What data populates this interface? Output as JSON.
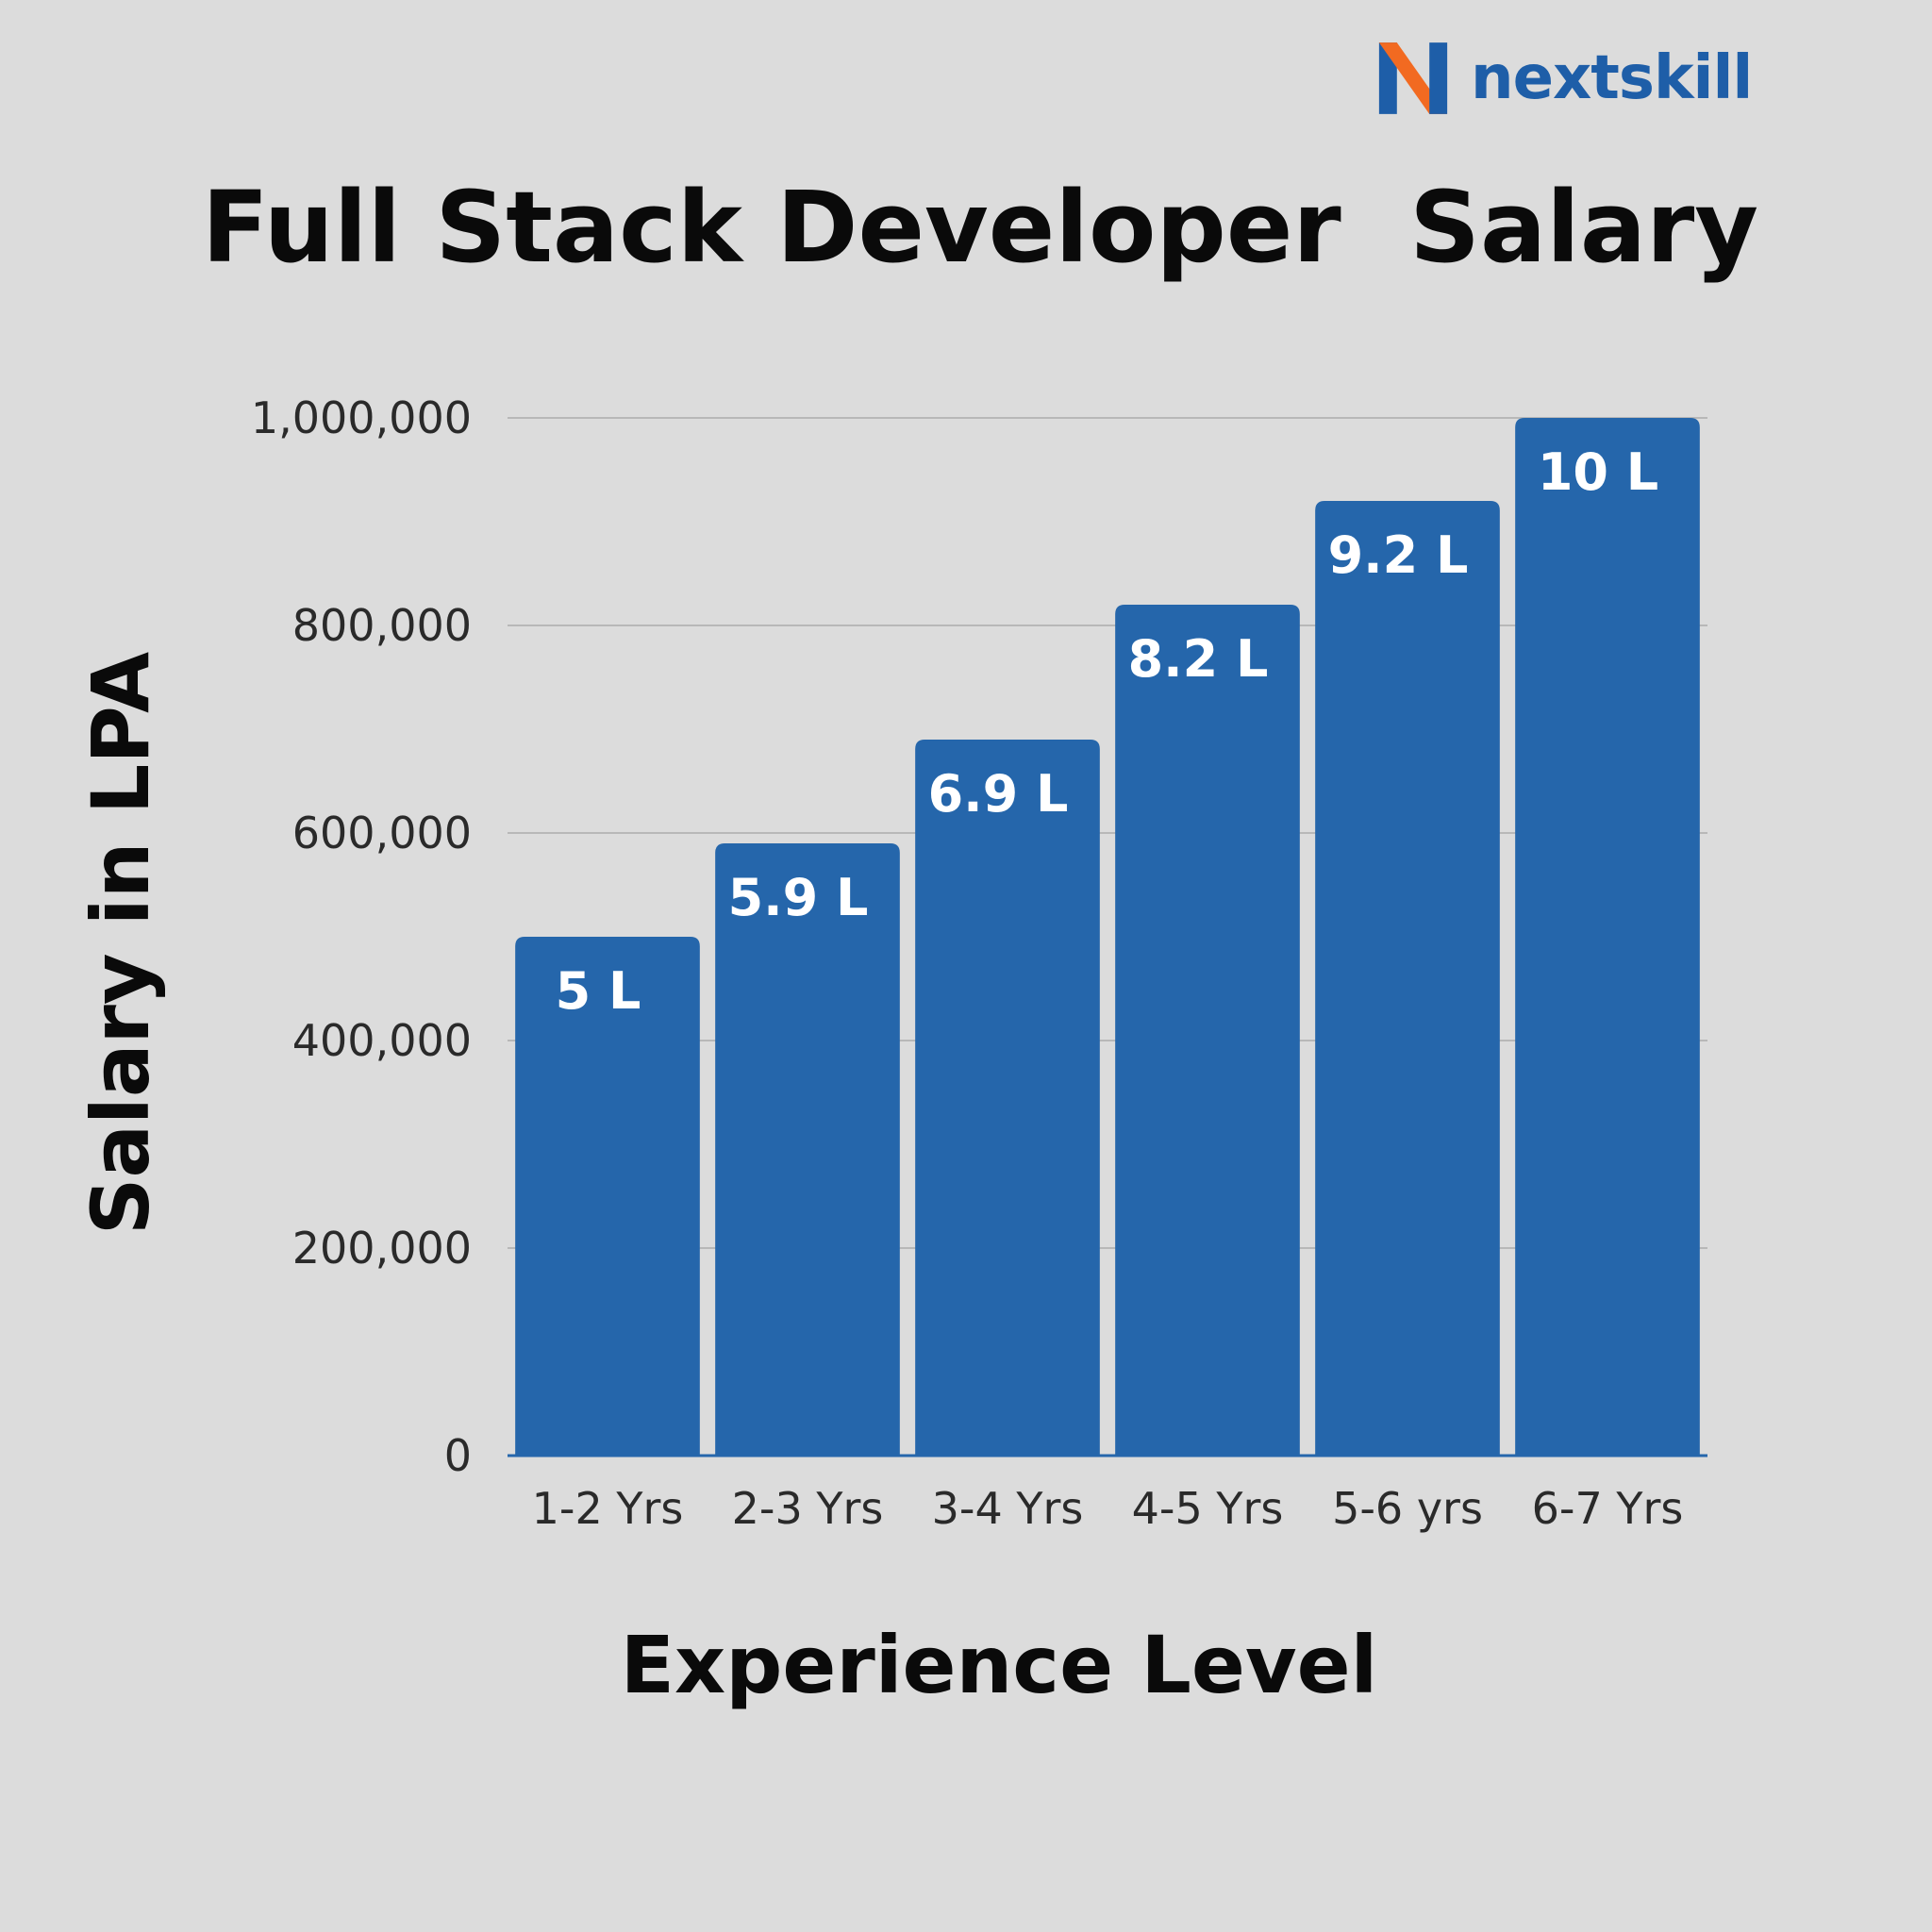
{
  "brand": {
    "name": "nextskill",
    "icon": "n-logo-icon",
    "colors": {
      "text": "#1e5ea8",
      "mark_primary": "#1e5ea8",
      "mark_accent": "#f26a21"
    }
  },
  "chart_data": {
    "type": "bar",
    "title": "Full Stack Developer  Salary",
    "xlabel": "Experience Level",
    "ylabel": "Salary in LPA",
    "categories": [
      "1-2 Yrs",
      "2-3 Yrs",
      "3-4 Yrs",
      "4-5 Yrs",
      "5-6 yrs",
      "6-7 Yrs"
    ],
    "values": [
      500000,
      590000,
      690000,
      820000,
      920000,
      1000000
    ],
    "data_labels": [
      "5 L",
      "5.9 L",
      "6.9 L",
      "8.2 L",
      "9.2 L",
      "10 L"
    ],
    "ylim": [
      0,
      1000000
    ],
    "yticks": [
      0,
      200000,
      400000,
      600000,
      800000,
      1000000
    ],
    "ytick_labels": [
      "0",
      "200,000",
      "400,000",
      "600,000",
      "800,000",
      "1,000,000"
    ],
    "grid": true,
    "legend": "none",
    "colors": {
      "bar": "#2566ab",
      "grid": "#b8b8b8",
      "background": "#dcdcdc"
    }
  }
}
